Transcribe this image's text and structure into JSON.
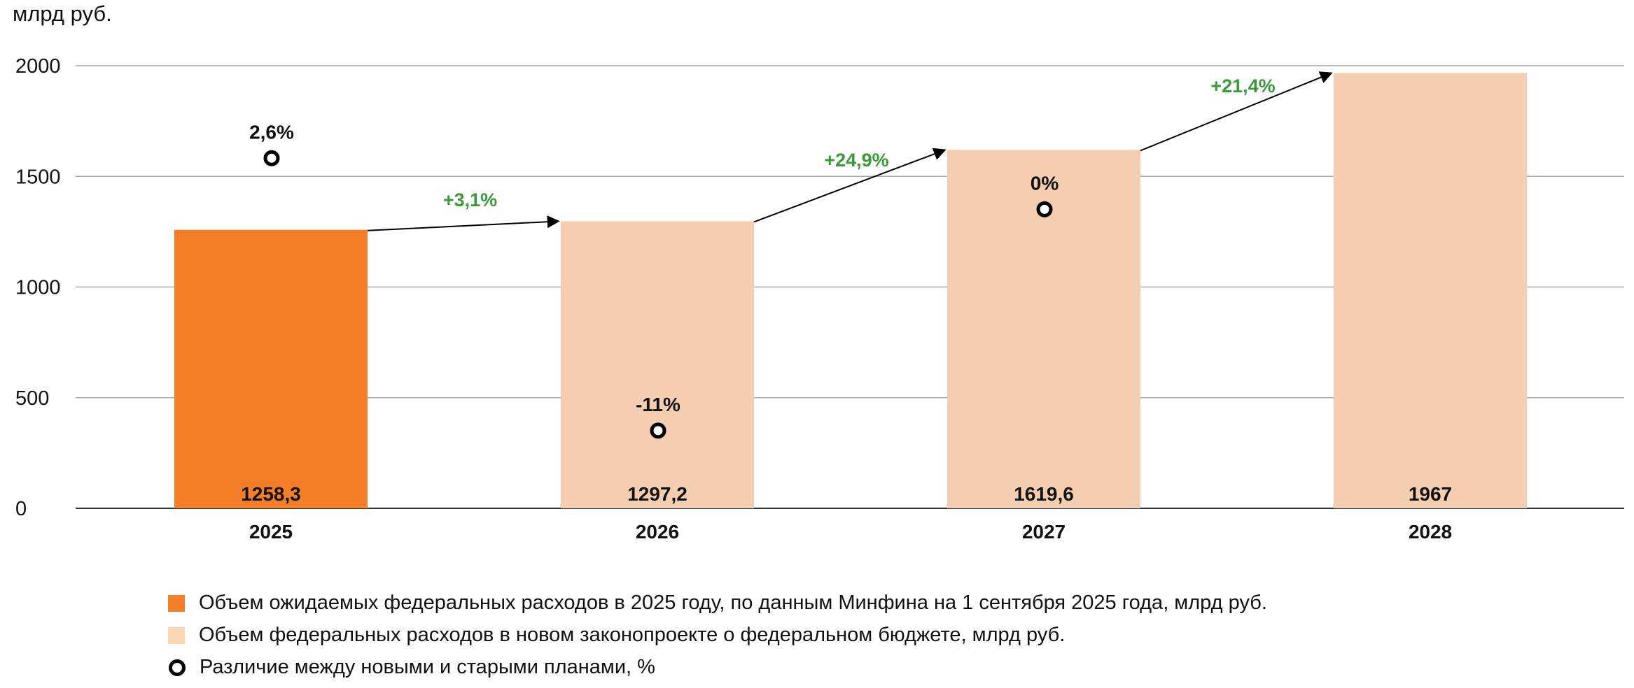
{
  "chart_data": {
    "type": "bar",
    "ylabel": "млрд руб.",
    "ylim": [
      0,
      2000
    ],
    "yticks": [
      "0",
      "500",
      "1000",
      "1500",
      "2000"
    ],
    "grid": true,
    "categories": [
      "2025",
      "2026",
      "2027",
      "2028"
    ],
    "values": [
      1258.3,
      1297.2,
      1619.6,
      1967
    ],
    "value_labels": [
      "1258,3",
      "1297,2",
      "1619,6",
      "1967"
    ],
    "bar_series": [
      "expected",
      "new",
      "new",
      "new"
    ],
    "difference_markers": [
      {
        "category": "2025",
        "label": "2,6%",
        "y": 1582
      },
      {
        "category": "2026",
        "label": "-11%",
        "y": 351
      },
      {
        "category": "2027",
        "label": "0%",
        "y": 1351
      }
    ],
    "growth_arrows": [
      {
        "from": "2025",
        "to": "2026",
        "label": "+3,1%"
      },
      {
        "from": "2026",
        "to": "2027",
        "label": "+24,9%"
      },
      {
        "from": "2027",
        "to": "2028",
        "label": "+21,4%"
      }
    ],
    "colors": {
      "expected": "#f57f29",
      "new": "#f5cdb0",
      "growth": "#3a9a3a",
      "grid": "#aaaaaa"
    },
    "legend": [
      {
        "key": "expected",
        "label": "Объем ожидаемых федеральных расходов в 2025 году, по данным Минфина на 1 сентября 2025 года, млрд руб."
      },
      {
        "key": "new",
        "label": "Объем федеральных расходов в новом законопроекте о федеральном бюджете, млрд руб."
      },
      {
        "key": "marker",
        "label": "Различие между новыми и старыми планами, %"
      }
    ]
  }
}
